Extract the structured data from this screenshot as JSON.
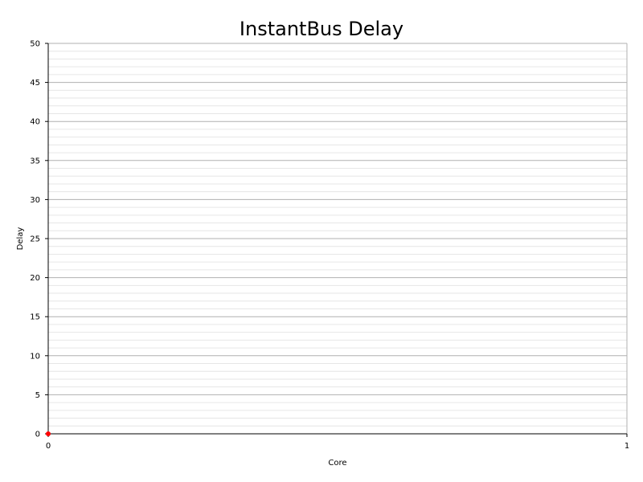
{
  "chart_data": {
    "type": "scatter",
    "title": "InstantBus Delay",
    "xlabel": "Core",
    "ylabel": "Delay",
    "xlim": [
      0,
      1
    ],
    "ylim": [
      0,
      50
    ],
    "x_ticks": [
      "0",
      "1"
    ],
    "y_ticks": [
      "0",
      "5",
      "10",
      "15",
      "20",
      "25",
      "30",
      "35",
      "40",
      "45",
      "50"
    ],
    "grid": true,
    "series": [
      {
        "color": "#ff0000",
        "points": [
          {
            "x": 0,
            "y": 0
          }
        ]
      }
    ]
  }
}
